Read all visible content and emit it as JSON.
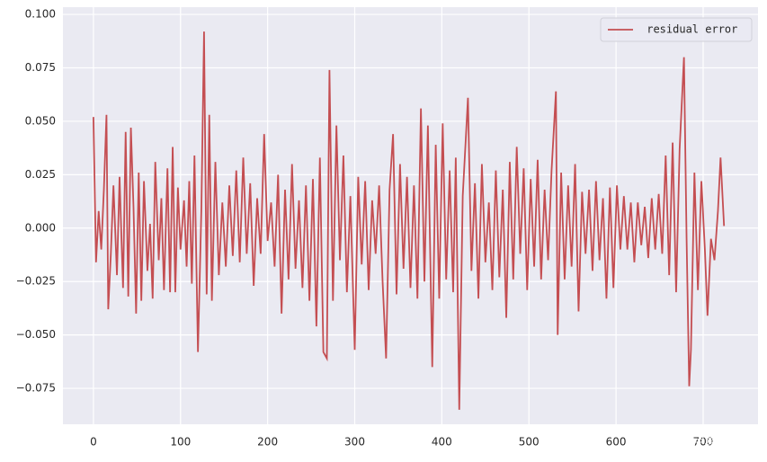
{
  "chart_data": {
    "type": "line",
    "x": [
      0,
      3,
      6,
      9,
      12,
      15,
      17,
      20,
      23,
      27,
      30,
      34,
      37,
      40,
      43,
      46,
      49,
      52,
      55,
      58,
      62,
      65,
      68,
      71,
      75,
      78,
      81,
      85,
      88,
      91,
      94,
      97,
      100,
      104,
      107,
      110,
      113,
      116,
      120,
      124,
      127,
      130,
      133,
      136,
      140,
      144,
      148,
      152,
      156,
      160,
      164,
      168,
      172,
      176,
      180,
      184,
      188,
      192,
      196,
      200,
      204,
      208,
      212,
      216,
      220,
      224,
      228,
      232,
      236,
      240,
      244,
      248,
      252,
      256,
      260,
      264,
      268,
      271,
      275,
      279,
      283,
      287,
      291,
      295,
      300,
      304,
      308,
      312,
      316,
      320,
      324,
      328,
      332,
      336,
      340,
      344,
      348,
      352,
      356,
      360,
      364,
      368,
      372,
      376,
      380,
      384,
      389,
      393,
      397,
      401,
      405,
      409,
      413,
      416,
      420,
      424,
      430,
      434,
      438,
      442,
      446,
      450,
      454,
      458,
      462,
      466,
      470,
      474,
      478,
      482,
      486,
      490,
      494,
      498,
      502,
      506,
      510,
      514,
      518,
      522,
      526,
      531,
      533,
      537,
      541,
      545,
      549,
      553,
      557,
      561,
      565,
      569,
      573,
      577,
      581,
      585,
      589,
      593,
      597,
      601,
      605,
      609,
      613,
      617,
      621,
      625,
      629,
      633,
      637,
      641,
      645,
      649,
      653,
      657,
      661,
      665,
      669,
      673,
      678,
      681,
      684,
      686,
      690,
      694,
      698,
      702,
      705,
      709,
      713,
      717,
      720,
      724
    ],
    "series": [
      {
        "name": " residual error",
        "color": "#c44e52",
        "values": [
          0.052,
          -0.016,
          0.008,
          -0.01,
          0.018,
          0.053,
          -0.038,
          -0.012,
          0.02,
          -0.022,
          0.024,
          -0.028,
          0.045,
          -0.032,
          0.047,
          0.01,
          -0.04,
          0.026,
          -0.034,
          0.022,
          -0.02,
          0.002,
          -0.033,
          0.031,
          -0.015,
          0.014,
          -0.029,
          0.028,
          -0.03,
          0.038,
          -0.03,
          0.019,
          -0.01,
          0.013,
          -0.018,
          0.022,
          -0.026,
          0.034,
          -0.058,
          0.01,
          0.092,
          -0.031,
          0.053,
          -0.034,
          0.031,
          -0.022,
          0.012,
          -0.018,
          0.02,
          -0.013,
          0.027,
          -0.016,
          0.033,
          -0.012,
          0.021,
          -0.027,
          0.014,
          -0.012,
          0.044,
          -0.006,
          0.012,
          -0.018,
          0.025,
          -0.04,
          0.018,
          -0.024,
          0.03,
          -0.019,
          0.013,
          -0.028,
          0.02,
          -0.034,
          0.023,
          -0.046,
          0.033,
          -0.058,
          -0.061,
          0.074,
          -0.034,
          0.048,
          -0.015,
          0.034,
          -0.03,
          0.015,
          -0.057,
          0.024,
          -0.017,
          0.022,
          -0.029,
          0.013,
          -0.012,
          0.02,
          -0.025,
          -0.061,
          0.018,
          0.044,
          -0.031,
          0.03,
          -0.019,
          0.024,
          -0.028,
          0.02,
          -0.033,
          0.056,
          -0.025,
          0.048,
          -0.065,
          0.039,
          -0.033,
          0.049,
          -0.024,
          0.027,
          -0.03,
          0.033,
          -0.085,
          0.015,
          0.061,
          -0.02,
          0.021,
          -0.033,
          0.03,
          -0.016,
          0.012,
          -0.029,
          0.027,
          -0.023,
          0.018,
          -0.042,
          0.031,
          -0.024,
          0.038,
          -0.012,
          0.028,
          -0.029,
          0.023,
          -0.018,
          0.032,
          -0.024,
          0.018,
          -0.015,
          0.027,
          0.064,
          -0.05,
          0.026,
          -0.024,
          0.02,
          -0.018,
          0.03,
          -0.039,
          0.017,
          -0.012,
          0.018,
          -0.02,
          0.022,
          -0.015,
          0.014,
          -0.033,
          0.019,
          -0.028,
          0.02,
          -0.01,
          0.015,
          -0.01,
          0.012,
          -0.016,
          0.012,
          -0.008,
          0.01,
          -0.014,
          0.014,
          -0.01,
          0.016,
          -0.012,
          0.034,
          -0.022,
          0.04,
          -0.03,
          0.037,
          0.08,
          -0.005,
          -0.074,
          -0.057,
          0.026,
          -0.029,
          0.022,
          -0.01,
          -0.041,
          -0.005,
          -0.015,
          0.008,
          0.033,
          0.001
        ]
      }
    ],
    "xlim": [
      -35,
      763
    ],
    "ylim": [
      -0.0918,
      0.1034
    ],
    "xticks": [
      0,
      100,
      200,
      300,
      400,
      500,
      600,
      700
    ],
    "yticks": [
      {
        "value": 0.1,
        "label": "0.100"
      },
      0.075,
      {
        "value": 0.05,
        "label": "0.050"
      },
      0.025,
      {
        "value": 0,
        "label": "0.000"
      },
      {
        "value": -0.025,
        "label": "−0.025"
      },
      {
        "value": -0.05,
        "label": "−0.050"
      },
      {
        "value": -0.075,
        "label": "−0.075"
      }
    ],
    "grid": true,
    "legend": "upper right",
    "watermark": "CSDN @宇易yuyee"
  }
}
